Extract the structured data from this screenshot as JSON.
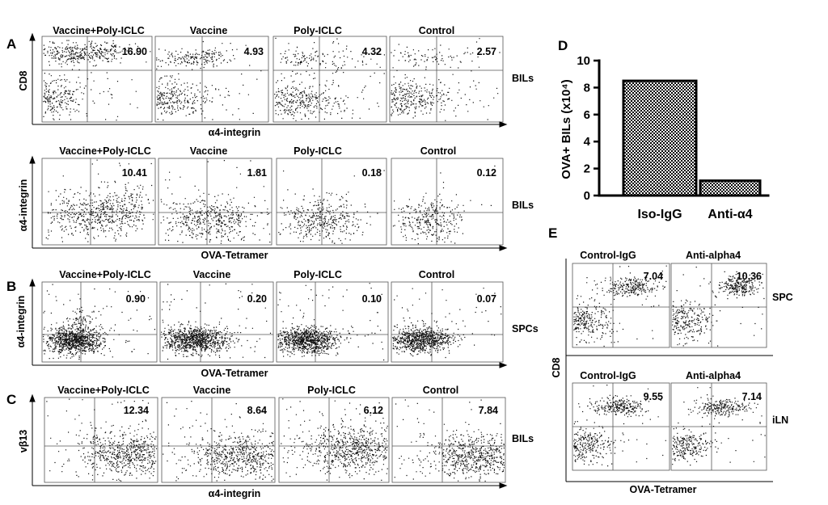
{
  "panels": {
    "A": {
      "letter": "A",
      "rows": [
        {
          "columns": [
            "Vaccine+Poly-ICLC",
            "Vaccine",
            "Poly-ICLC",
            "Control"
          ],
          "values": [
            "16.90",
            "4.93",
            "4.32",
            "2.57"
          ],
          "tissue": "BILs",
          "xlabel": "α4-integrin",
          "ylabel": "CD8"
        },
        {
          "columns": [
            "Vaccine+Poly-ICLC",
            "Vaccine",
            "Poly-ICLC",
            "Control"
          ],
          "values": [
            "10.41",
            "1.81",
            "0.18",
            "0.12"
          ],
          "tissue": "BILs",
          "xlabel": "OVA-Tetramer",
          "ylabel": "α4-integrin"
        }
      ]
    },
    "B": {
      "letter": "B",
      "columns": [
        "Vaccine+Poly-ICLC",
        "Vaccine",
        "Poly-ICLC",
        "Control"
      ],
      "values": [
        "0.90",
        "0.20",
        "0.10",
        "0.07"
      ],
      "tissue": "SPCs",
      "xlabel": "OVA-Tetramer",
      "ylabel": "α4-integrin"
    },
    "C": {
      "letter": "C",
      "columns": [
        "Vaccine+Poly-ICLC",
        "Vaccine",
        "Poly-ICLC",
        "Control"
      ],
      "values": [
        "12.34",
        "8.64",
        "6.12",
        "7.84"
      ],
      "tissue": "BILs",
      "xlabel": "α4-integrin",
      "ylabel": "vβ13"
    },
    "D": {
      "letter": "D"
    },
    "E": {
      "letter": "E",
      "columns": [
        "Control-IgG",
        "Anti-alpha4"
      ],
      "rows": [
        {
          "values": [
            "7.04",
            "10.36"
          ],
          "tissue": "SPC"
        },
        {
          "values": [
            "9.55",
            "7.14"
          ],
          "tissue": "iLN"
        }
      ],
      "xlabel": "OVA-Tetramer",
      "ylabel": "CD8"
    }
  },
  "chart_data": [
    {
      "type": "bar",
      "panel": "D",
      "categories": [
        "Iso-IgG",
        "Anti-α4"
      ],
      "values": [
        8.5,
        1.1
      ],
      "ylabel": "OVA+ BILs (x10⁴)",
      "ylim": [
        0,
        10
      ],
      "yticks": [
        "0",
        "2",
        "4",
        "6",
        "8",
        "10"
      ],
      "fill": "checkered black/white",
      "grid": false
    }
  ]
}
